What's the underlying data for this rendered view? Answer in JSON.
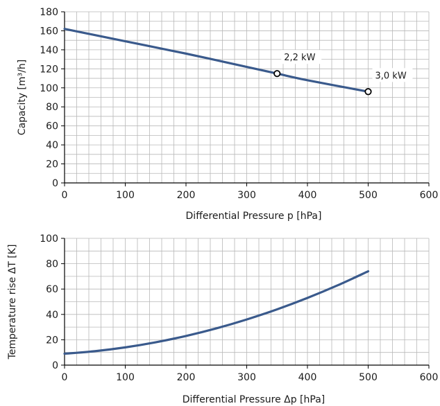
{
  "chart_data": [
    {
      "type": "line",
      "xlabel": "Differential Pressure p [hPa]",
      "ylabel": "Capacity [m³/h]",
      "xlim": [
        0,
        600
      ],
      "ylim": [
        0,
        180
      ],
      "xticks": [
        0,
        100,
        200,
        300,
        400,
        500,
        600
      ],
      "yticks": [
        0,
        20,
        40,
        60,
        80,
        100,
        120,
        140,
        160,
        180
      ],
      "grid": true,
      "color": "#3a5a8c",
      "series": [
        {
          "x": [
            0,
            100,
            200,
            300,
            350,
            400,
            500
          ],
          "y": [
            162,
            149,
            136,
            122,
            115,
            108,
            96
          ]
        }
      ],
      "annotations": [
        {
          "label": "2,2 kW",
          "x": 350,
          "y": 115
        },
        {
          "label": "3,0 kW",
          "x": 500,
          "y": 96
        }
      ]
    },
    {
      "type": "line",
      "xlabel": "Differential Pressure Δp [hPa]",
      "ylabel": "Temperature rise  ΔT [K]",
      "xlim": [
        0,
        600
      ],
      "ylim": [
        0,
        100
      ],
      "xticks": [
        0,
        100,
        200,
        300,
        400,
        500,
        600
      ],
      "yticks": [
        0,
        20,
        40,
        60,
        80,
        100
      ],
      "grid": true,
      "color": "#3a5a8c",
      "series": [
        {
          "x": [
            0,
            50,
            100,
            150,
            200,
            250,
            300,
            350,
            400,
            450,
            500
          ],
          "y": [
            9,
            11,
            14,
            18,
            23,
            29,
            36,
            44,
            53,
            63,
            74
          ]
        }
      ]
    }
  ]
}
